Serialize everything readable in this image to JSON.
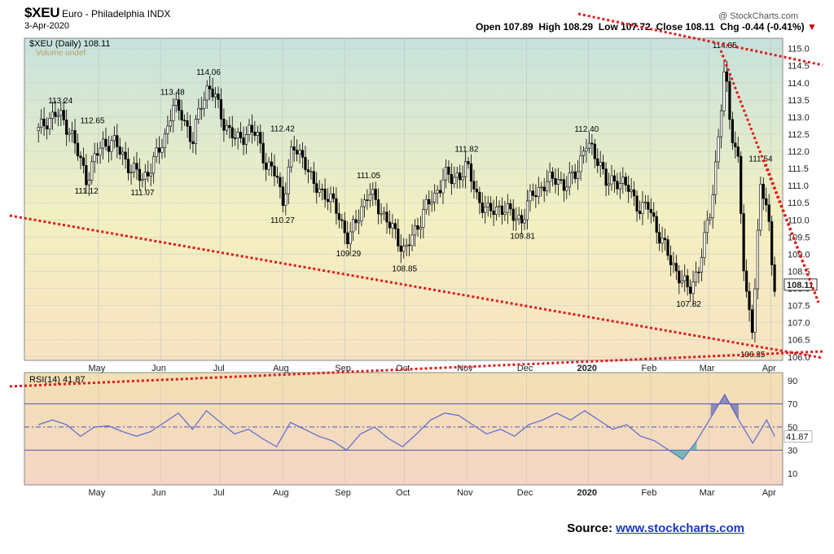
{
  "header": {
    "title": "$XEU",
    "subtitle": "Euro - Philadelphia  INDX",
    "date": "3-Apr-2020",
    "watermark": "@ StockCharts.com",
    "ohlc": {
      "open_label": "Open",
      "open": "107.89",
      "high_label": "High",
      "high": "108.29",
      "low_label": "Low",
      "low": "107.72",
      "close_label": "Close",
      "close": "108.11",
      "chg_label": "Chg",
      "chg": "-0.44 (-0.41%)"
    },
    "legend_price": "$XEU (Daily) 108.11",
    "legend_volume": "Volume undef",
    "legend_rsi": "RSI(14) 41.87"
  },
  "source": {
    "label": "Source:",
    "link": "www.stockcharts.com"
  },
  "colors": {
    "up": "#ffffff",
    "down": "#000000",
    "rsi_line": "#5a6ad0",
    "trendline": "#e01b1b",
    "current_label": "#000000"
  },
  "chart_data": [
    {
      "type": "candlestick",
      "title": "$XEU (Daily) 108.11",
      "y_ticks": [
        106.0,
        106.5,
        107.0,
        107.5,
        108.0,
        108.5,
        109.0,
        109.5,
        110.0,
        110.5,
        111.0,
        111.5,
        112.0,
        112.5,
        113.0,
        113.5,
        114.0,
        114.5,
        115.0
      ],
      "ylim": [
        105.9,
        115.3
      ],
      "x_ticks": [
        "May",
        "Jun",
        "Jul",
        "Aug",
        "Sep",
        "Oct",
        "Nov",
        "Dec",
        "2020",
        "Feb",
        "Mar",
        "Apr"
      ],
      "current_value": 108.11,
      "annotations": [
        {
          "date": "2019-04-12",
          "value": 113.24,
          "label": "113.24",
          "pos": "above"
        },
        {
          "date": "2019-04-28",
          "value": 112.65,
          "label": "112.65",
          "pos": "above"
        },
        {
          "date": "2019-04-25",
          "value": 111.12,
          "label": "111.12",
          "pos": "below"
        },
        {
          "date": "2019-05-23",
          "value": 111.07,
          "label": "111.07",
          "pos": "below"
        },
        {
          "date": "2019-06-07",
          "value": 113.48,
          "label": "113.48",
          "pos": "above"
        },
        {
          "date": "2019-06-25",
          "value": 114.06,
          "label": "114.06",
          "pos": "above"
        },
        {
          "date": "2019-08-01",
          "value": 112.42,
          "label": "112.42",
          "pos": "above"
        },
        {
          "date": "2019-08-01",
          "value": 110.27,
          "label": "110.27",
          "pos": "below"
        },
        {
          "date": "2019-09-03",
          "value": 109.29,
          "label": "109.29",
          "pos": "below"
        },
        {
          "date": "2019-09-13",
          "value": 111.05,
          "label": "111.05",
          "pos": "above"
        },
        {
          "date": "2019-10-01",
          "value": 108.85,
          "label": "108.85",
          "pos": "below"
        },
        {
          "date": "2019-11-01",
          "value": 111.82,
          "label": "111.82",
          "pos": "above"
        },
        {
          "date": "2019-11-29",
          "value": 109.81,
          "label": "109.81",
          "pos": "below"
        },
        {
          "date": "2019-12-31",
          "value": 112.4,
          "label": "112.40",
          "pos": "above"
        },
        {
          "date": "2020-02-20",
          "value": 107.82,
          "label": "107.82",
          "pos": "below"
        },
        {
          "date": "2020-03-09",
          "value": 114.85,
          "label": "114.85",
          "pos": "above"
        },
        {
          "date": "2020-03-23",
          "value": 106.35,
          "label": "106.35",
          "pos": "below"
        },
        {
          "date": "2020-03-27",
          "value": 111.54,
          "label": "111.54",
          "pos": "above"
        }
      ],
      "close_series": [
        [
          "2019-04-01",
          112.6
        ],
        [
          "2019-04-05",
          112.9
        ],
        [
          "2019-04-10",
          113.1
        ],
        [
          "2019-04-12",
          113.0
        ],
        [
          "2019-04-17",
          112.6
        ],
        [
          "2019-04-22",
          111.7
        ],
        [
          "2019-04-25",
          111.2
        ],
        [
          "2019-04-30",
          111.9
        ],
        [
          "2019-05-03",
          112.2
        ],
        [
          "2019-05-08",
          112.3
        ],
        [
          "2019-05-13",
          111.9
        ],
        [
          "2019-05-17",
          111.5
        ],
        [
          "2019-05-23",
          111.2
        ],
        [
          "2019-05-28",
          111.6
        ],
        [
          "2019-06-03",
          112.4
        ],
        [
          "2019-06-07",
          113.3
        ],
        [
          "2019-06-12",
          113.1
        ],
        [
          "2019-06-17",
          112.2
        ],
        [
          "2019-06-21",
          113.4
        ],
        [
          "2019-06-25",
          113.9
        ],
        [
          "2019-06-28",
          113.6
        ],
        [
          "2019-07-03",
          112.8
        ],
        [
          "2019-07-09",
          112.3
        ],
        [
          "2019-07-15",
          112.6
        ],
        [
          "2019-07-19",
          112.5
        ],
        [
          "2019-07-24",
          111.6
        ],
        [
          "2019-07-29",
          111.3
        ],
        [
          "2019-08-01",
          110.5
        ],
        [
          "2019-08-06",
          112.1
        ],
        [
          "2019-08-12",
          111.8
        ],
        [
          "2019-08-16",
          111.0
        ],
        [
          "2019-08-22",
          110.8
        ],
        [
          "2019-08-28",
          110.3
        ],
        [
          "2019-09-03",
          109.4
        ],
        [
          "2019-09-09",
          110.3
        ],
        [
          "2019-09-13",
          110.8
        ],
        [
          "2019-09-18",
          110.4
        ],
        [
          "2019-09-24",
          109.8
        ],
        [
          "2019-10-01",
          109.1
        ],
        [
          "2019-10-07",
          109.7
        ],
        [
          "2019-10-11",
          110.4
        ],
        [
          "2019-10-16",
          110.6
        ],
        [
          "2019-10-21",
          111.4
        ],
        [
          "2019-10-25",
          111.1
        ],
        [
          "2019-11-01",
          111.6
        ],
        [
          "2019-11-06",
          110.7
        ],
        [
          "2019-11-12",
          110.2
        ],
        [
          "2019-11-18",
          110.4
        ],
        [
          "2019-11-22",
          110.2
        ],
        [
          "2019-11-29",
          110.0
        ],
        [
          "2019-12-04",
          110.8
        ],
        [
          "2019-12-10",
          111.0
        ],
        [
          "2019-12-16",
          111.3
        ],
        [
          "2019-12-20",
          110.9
        ],
        [
          "2019-12-27",
          111.6
        ],
        [
          "2019-12-31",
          112.2
        ],
        [
          "2020-01-06",
          111.8
        ],
        [
          "2020-01-10",
          111.0
        ],
        [
          "2020-01-15",
          111.2
        ],
        [
          "2020-01-21",
          110.9
        ],
        [
          "2020-01-27",
          110.3
        ],
        [
          "2020-01-31",
          110.4
        ],
        [
          "2020-02-05",
          109.6
        ],
        [
          "2020-02-11",
          108.8
        ],
        [
          "2020-02-17",
          108.2
        ],
        [
          "2020-02-20",
          107.9
        ],
        [
          "2020-02-25",
          108.6
        ],
        [
          "2020-03-02",
          110.3
        ],
        [
          "2020-03-05",
          111.9
        ],
        [
          "2020-03-09",
          114.4
        ],
        [
          "2020-03-12",
          112.7
        ],
        [
          "2020-03-16",
          111.7
        ],
        [
          "2020-03-19",
          107.9
        ],
        [
          "2020-03-23",
          106.9
        ],
        [
          "2020-03-25",
          109.0
        ],
        [
          "2020-03-27",
          111.1
        ],
        [
          "2020-03-31",
          109.9
        ],
        [
          "2020-04-02",
          108.6
        ],
        [
          "2020-04-03",
          108.11
        ]
      ]
    },
    {
      "type": "line",
      "title": "RSI(14) 41.87",
      "y_ticks": [
        10,
        30,
        50,
        70,
        90
      ],
      "ylim": [
        0,
        97
      ],
      "reference_lines": [
        30,
        50,
        70
      ],
      "x_ticks": [
        "May",
        "Jun",
        "Jul",
        "Aug",
        "Sep",
        "Oct",
        "Nov",
        "Dec",
        "2020",
        "Feb",
        "Mar",
        "Apr"
      ],
      "current_value": 41.87,
      "series": [
        [
          "2019-04-01",
          52
        ],
        [
          "2019-04-08",
          56
        ],
        [
          "2019-04-15",
          52
        ],
        [
          "2019-04-22",
          42
        ],
        [
          "2019-04-29",
          50
        ],
        [
          "2019-05-06",
          51
        ],
        [
          "2019-05-13",
          46
        ],
        [
          "2019-05-20",
          42
        ],
        [
          "2019-05-27",
          46
        ],
        [
          "2019-06-03",
          54
        ],
        [
          "2019-06-10",
          62
        ],
        [
          "2019-06-17",
          48
        ],
        [
          "2019-06-24",
          64
        ],
        [
          "2019-07-01",
          54
        ],
        [
          "2019-07-08",
          44
        ],
        [
          "2019-07-15",
          48
        ],
        [
          "2019-07-22",
          40
        ],
        [
          "2019-07-29",
          33
        ],
        [
          "2019-08-05",
          54
        ],
        [
          "2019-08-12",
          48
        ],
        [
          "2019-08-19",
          42
        ],
        [
          "2019-08-26",
          38
        ],
        [
          "2019-09-02",
          30
        ],
        [
          "2019-09-09",
          44
        ],
        [
          "2019-09-16",
          50
        ],
        [
          "2019-09-23",
          40
        ],
        [
          "2019-09-30",
          33
        ],
        [
          "2019-10-07",
          44
        ],
        [
          "2019-10-14",
          56
        ],
        [
          "2019-10-21",
          62
        ],
        [
          "2019-10-28",
          60
        ],
        [
          "2019-11-04",
          52
        ],
        [
          "2019-11-11",
          44
        ],
        [
          "2019-11-18",
          48
        ],
        [
          "2019-11-25",
          42
        ],
        [
          "2019-12-02",
          52
        ],
        [
          "2019-12-09",
          56
        ],
        [
          "2019-12-16",
          62
        ],
        [
          "2019-12-23",
          56
        ],
        [
          "2019-12-30",
          64
        ],
        [
          "2020-01-06",
          56
        ],
        [
          "2020-01-13",
          48
        ],
        [
          "2020-01-20",
          52
        ],
        [
          "2020-01-27",
          42
        ],
        [
          "2020-02-03",
          38
        ],
        [
          "2020-02-10",
          30
        ],
        [
          "2020-02-17",
          22
        ],
        [
          "2020-02-24",
          38
        ],
        [
          "2020-03-02",
          58
        ],
        [
          "2020-03-09",
          78
        ],
        [
          "2020-03-16",
          56
        ],
        [
          "2020-03-23",
          36
        ],
        [
          "2020-03-30",
          56
        ],
        [
          "2020-04-03",
          41.87
        ]
      ]
    }
  ]
}
